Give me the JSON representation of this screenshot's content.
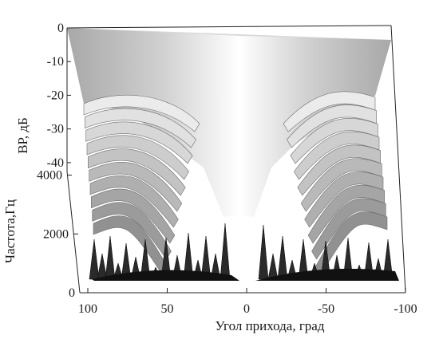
{
  "chart_data": {
    "type": "surface",
    "xlabel": "Угол прихода, град",
    "ylabel": "Частота,Гц",
    "zlabel": "ВР, дБ",
    "x_ticks": [
      "100",
      "50",
      "0",
      "-50",
      "-100"
    ],
    "y_ticks": [
      "0",
      "2000",
      "4000"
    ],
    "z_ticks": [
      "0",
      "-10",
      "-20",
      "-30",
      "-40"
    ],
    "xlim": [
      100,
      -100
    ],
    "ylim": [
      0,
      4000
    ],
    "zlim": [
      -45,
      0
    ],
    "colormap": "grayscale",
    "grid": false,
    "description_values": {
      "main_lobe_angle": 0,
      "main_lobe_level_db": 0,
      "sidelobe_floor_db": -40,
      "lobe_count_at_max_frequency": 10
    }
  }
}
